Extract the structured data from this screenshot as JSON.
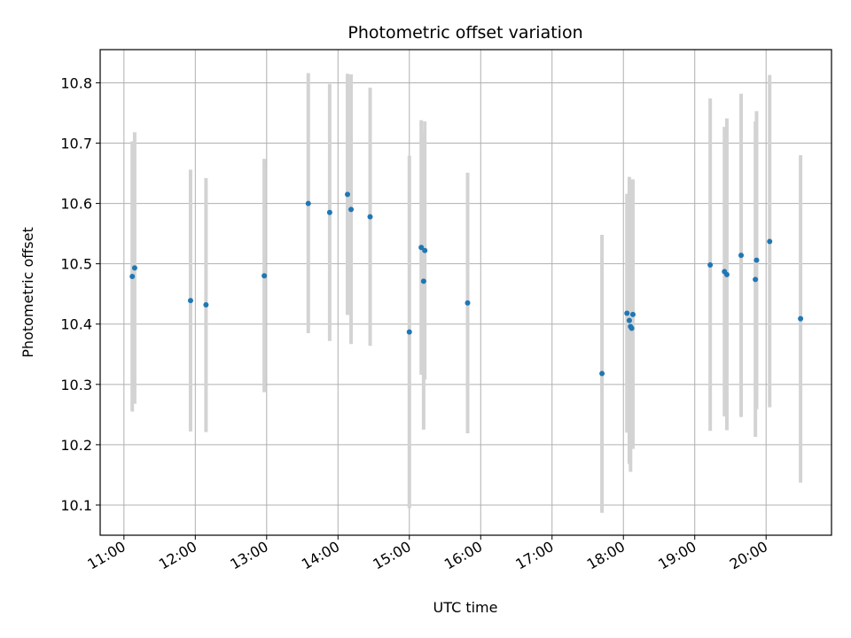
{
  "chart_data": {
    "type": "scatter",
    "title": "Photometric offset variation",
    "xlabel": "UTC time",
    "ylabel": "Photometric offset",
    "xlim": [
      "10:40",
      "20:55"
    ],
    "ylim": [
      10.05,
      10.855
    ],
    "grid": true,
    "x_ticks": [
      "11:00",
      "12:00",
      "13:00",
      "14:00",
      "15:00",
      "16:00",
      "17:00",
      "18:00",
      "19:00",
      "20:00"
    ],
    "y_ticks": [
      10.1,
      10.2,
      10.3,
      10.4,
      10.5,
      10.6,
      10.7,
      10.8
    ],
    "colors": {
      "points": "#1f77b4",
      "error_bars": "#d3d3d3",
      "grid": "#b0b0b0"
    },
    "points": [
      {
        "x": "11:07",
        "y": 10.479,
        "ylo": 10.255,
        "yhi": 10.703
      },
      {
        "x": "11:09",
        "y": 10.493,
        "ylo": 10.268,
        "yhi": 10.718
      },
      {
        "x": "11:56",
        "y": 10.439,
        "ylo": 10.222,
        "yhi": 10.656
      },
      {
        "x": "12:09",
        "y": 10.432,
        "ylo": 10.221,
        "yhi": 10.642
      },
      {
        "x": "12:58",
        "y": 10.48,
        "ylo": 10.287,
        "yhi": 10.674
      },
      {
        "x": "13:35",
        "y": 10.6,
        "ylo": 10.385,
        "yhi": 10.816
      },
      {
        "x": "13:53",
        "y": 10.585,
        "ylo": 10.372,
        "yhi": 10.798
      },
      {
        "x": "14:08",
        "y": 10.615,
        "ylo": 10.415,
        "yhi": 10.815
      },
      {
        "x": "14:11",
        "y": 10.59,
        "ylo": 10.367,
        "yhi": 10.814
      },
      {
        "x": "14:27",
        "y": 10.578,
        "ylo": 10.364,
        "yhi": 10.792
      },
      {
        "x": "15:00",
        "y": 10.387,
        "ylo": 10.095,
        "yhi": 10.679
      },
      {
        "x": "15:10",
        "y": 10.527,
        "ylo": 10.316,
        "yhi": 10.738
      },
      {
        "x": "15:12",
        "y": 10.471,
        "ylo": 10.225,
        "yhi": 10.717
      },
      {
        "x": "15:13",
        "y": 10.522,
        "ylo": 10.308,
        "yhi": 10.736
      },
      {
        "x": "15:49",
        "y": 10.435,
        "ylo": 10.219,
        "yhi": 10.651
      },
      {
        "x": "17:42",
        "y": 10.318,
        "ylo": 10.087,
        "yhi": 10.548
      },
      {
        "x": "18:03",
        "y": 10.418,
        "ylo": 10.22,
        "yhi": 10.616
      },
      {
        "x": "18:05",
        "y": 10.406,
        "ylo": 10.168,
        "yhi": 10.644
      },
      {
        "x": "18:06",
        "y": 10.396,
        "ylo": 10.155,
        "yhi": 10.637
      },
      {
        "x": "18:07",
        "y": 10.393,
        "ylo": 10.195,
        "yhi": 10.63
      },
      {
        "x": "18:08",
        "y": 10.416,
        "ylo": 10.193,
        "yhi": 10.64
      },
      {
        "x": "19:13",
        "y": 10.498,
        "ylo": 10.223,
        "yhi": 10.774
      },
      {
        "x": "19:25",
        "y": 10.487,
        "ylo": 10.247,
        "yhi": 10.727
      },
      {
        "x": "19:27",
        "y": 10.482,
        "ylo": 10.224,
        "yhi": 10.741
      },
      {
        "x": "19:39",
        "y": 10.514,
        "ylo": 10.246,
        "yhi": 10.782
      },
      {
        "x": "19:51",
        "y": 10.474,
        "ylo": 10.213,
        "yhi": 10.736
      },
      {
        "x": "19:52",
        "y": 10.506,
        "ylo": 10.259,
        "yhi": 10.753
      },
      {
        "x": "20:03",
        "y": 10.537,
        "ylo": 10.262,
        "yhi": 10.813
      },
      {
        "x": "20:29",
        "y": 10.409,
        "ylo": 10.137,
        "yhi": 10.68
      }
    ]
  }
}
